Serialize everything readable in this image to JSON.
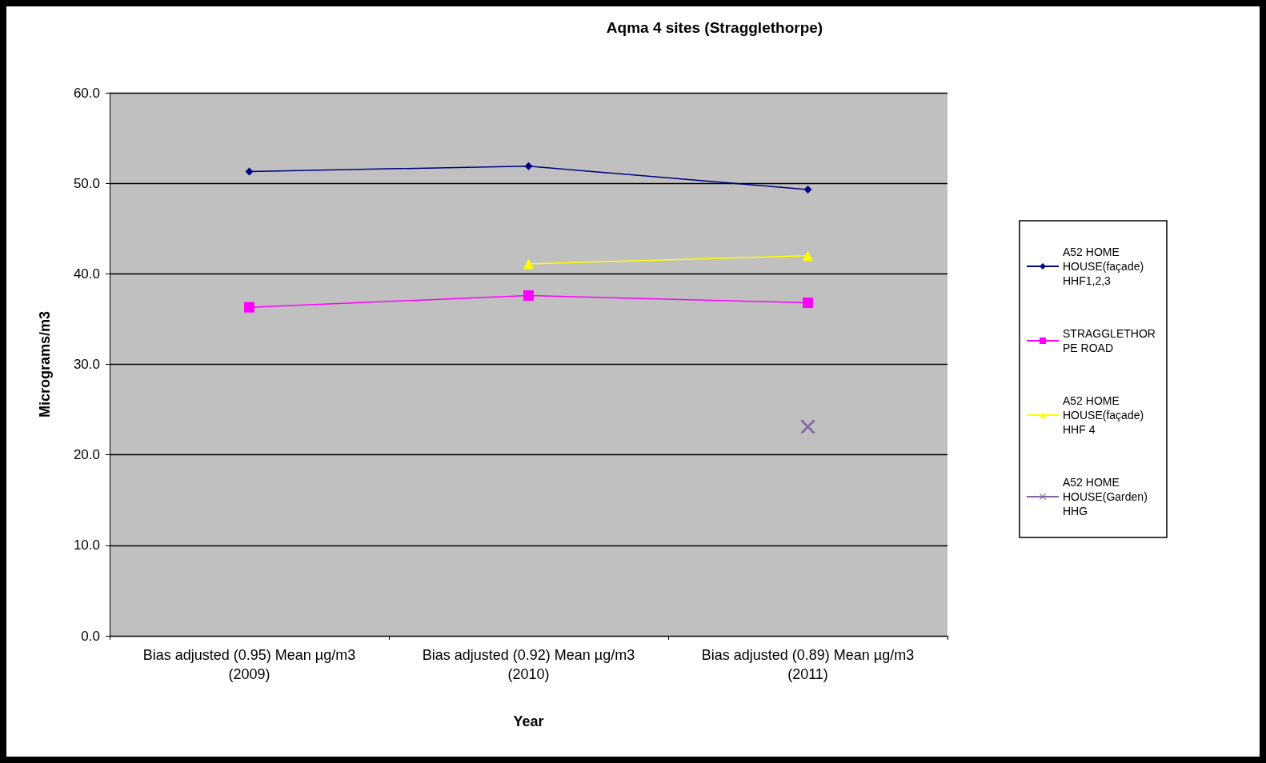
{
  "chart_data": {
    "type": "line",
    "title": "Aqma 4 sites (Stragglethorpe)",
    "xlabel": "Year",
    "ylabel": "Micrograms/m3",
    "categories": [
      "Bias adjusted (0.95) Mean µg/m3\n(2009)",
      "Bias adjusted (0.92) Mean µg/m3\n(2010)",
      "Bias adjusted (0.89) Mean µg/m3\n(2011)"
    ],
    "series": [
      {
        "name": "A52 HOME HOUSE(façade) HHF1,2,3",
        "color": "#000080",
        "marker": "diamond",
        "values": [
          51.3,
          51.9,
          49.3
        ]
      },
      {
        "name": "STRAGGLETHORPE ROAD",
        "color": "#ff00ff",
        "marker": "square",
        "values": [
          36.3,
          37.6,
          36.8
        ]
      },
      {
        "name": "A52 HOME HOUSE(façade) HHF 4",
        "color": "#ffff00",
        "marker": "triangle",
        "values": [
          null,
          41.1,
          42.0
        ]
      },
      {
        "name": "A52 HOME HOUSE(Garden) HHG",
        "color": "#8064a2",
        "marker": "cross",
        "values": [
          null,
          null,
          23.1
        ]
      }
    ],
    "ylim": [
      0,
      60
    ],
    "yticks": [
      {
        "value": 0,
        "label": "0.0"
      },
      {
        "value": 10,
        "label": "10.0"
      },
      {
        "value": 20,
        "label": "20.0"
      },
      {
        "value": 30,
        "label": "30.0"
      },
      {
        "value": 40,
        "label": "40.0"
      },
      {
        "value": 50,
        "label": "50.0"
      },
      {
        "value": 60,
        "label": "60.0"
      }
    ],
    "grid": "y",
    "legend": "right"
  }
}
